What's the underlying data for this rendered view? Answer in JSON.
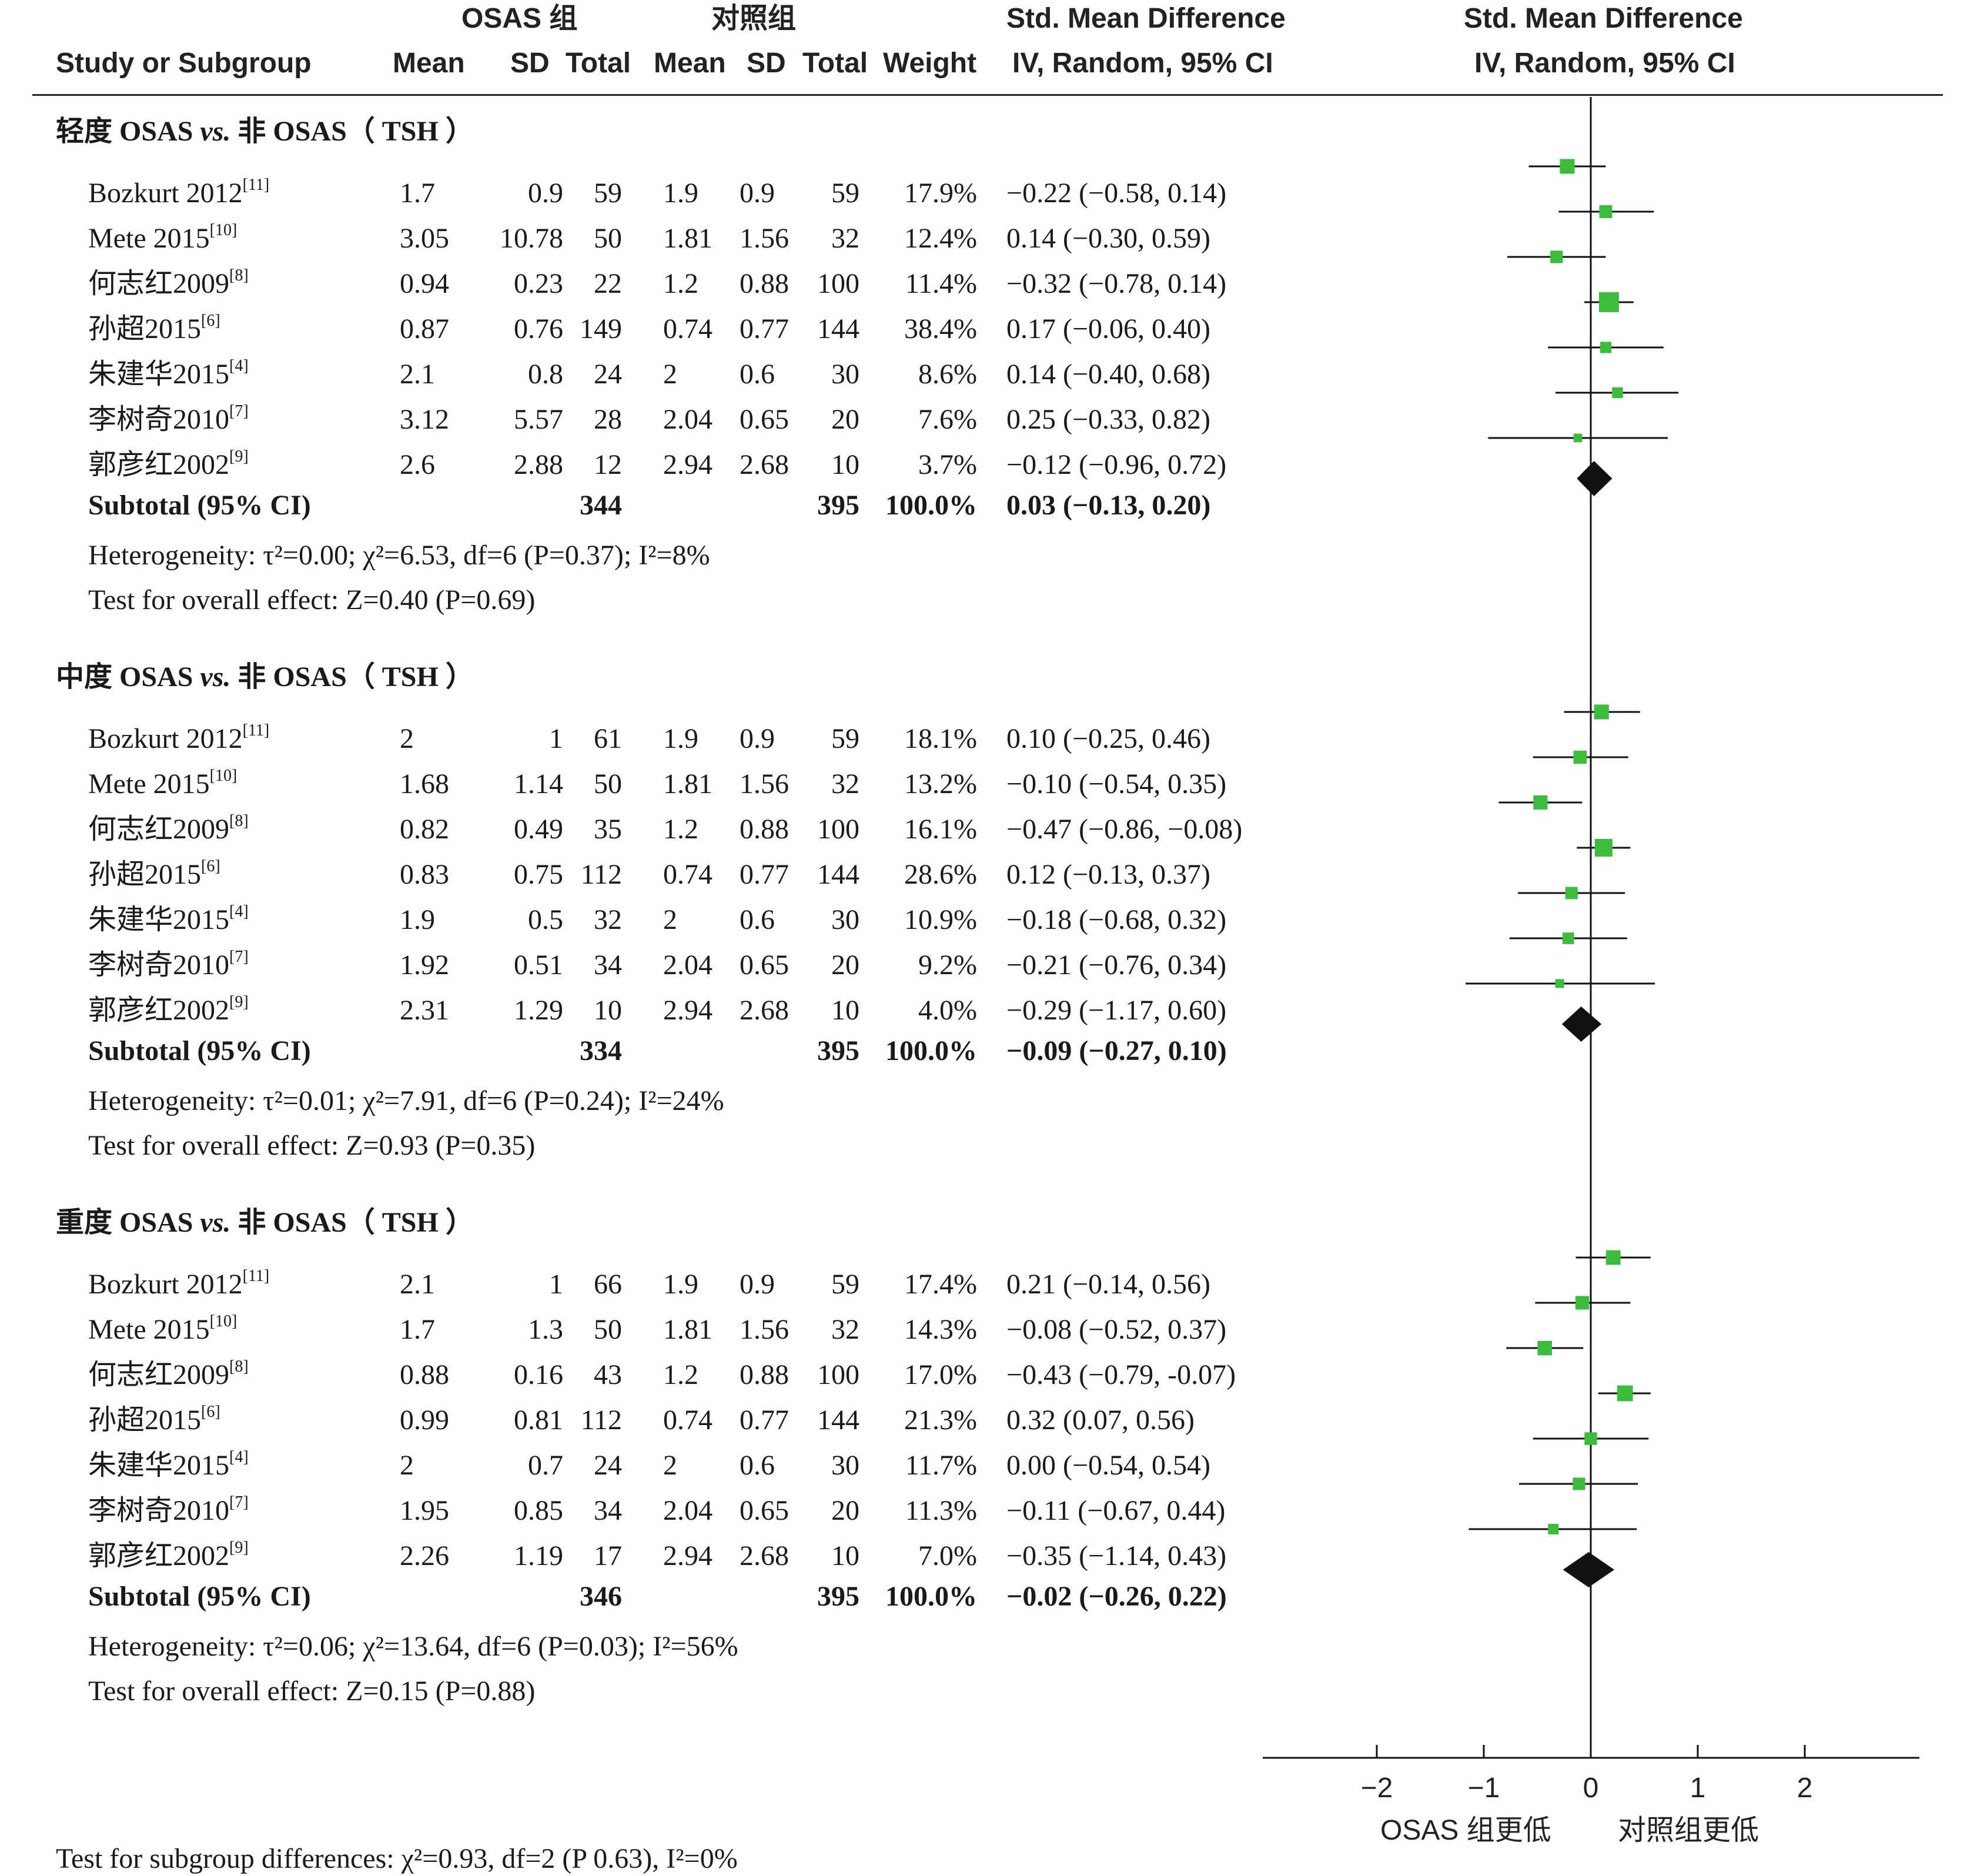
{
  "header": {
    "group1": "OSAS 组",
    "group2": "对照组",
    "smd_col_title": "Std. Mean Difference",
    "smd_col_sub": "IV, Random, 95% CI",
    "plot_title": "Std. Mean Difference",
    "plot_sub": "IV, Random, 95% CI",
    "study_col": "Study or Subgroup",
    "mean1": "Mean",
    "sd1": "SD",
    "total1": "Total",
    "mean2": "Mean",
    "sd2": "SD",
    "total2": "Total",
    "weight": "Weight"
  },
  "chart_data": {
    "type": "forest",
    "xlim": [
      -2,
      2
    ],
    "xticks": [
      "−2",
      "−1",
      "0",
      "1",
      "2"
    ],
    "xlabel_left": "OSAS 组更低",
    "xlabel_right": "对照组更低",
    "subgroups": [
      {
        "title_pre": "轻度 OSAS ",
        "title_vs": "vs.",
        "title_post": " 非 OSAS（ TSH ）",
        "studies": [
          {
            "name": "Bozkurt 2012",
            "ref": "[11]",
            "m1": "1.7",
            "sd1": "0.9",
            "n1": "59",
            "m2": "1.9",
            "sd2": "0.9",
            "n2": "59",
            "w": "17.9%",
            "ci_text": "−0.22 (−0.58, 0.14)",
            "est": -0.22,
            "lo": -0.58,
            "hi": 0.14,
            "wv": 17.9
          },
          {
            "name": "Mete 2015",
            "ref": "[10]",
            "m1": "3.05",
            "sd1": "10.78",
            "n1": "50",
            "m2": "1.81",
            "sd2": "1.56",
            "n2": "32",
            "w": "12.4%",
            "ci_text": "0.14 (−0.30, 0.59)",
            "est": 0.14,
            "lo": -0.3,
            "hi": 0.59,
            "wv": 12.4
          },
          {
            "name": "何志红2009",
            "ref": "[8]",
            "m1": "0.94",
            "sd1": "0.23",
            "n1": "22",
            "m2": "1.2",
            "sd2": "0.88",
            "n2": "100",
            "w": "11.4%",
            "ci_text": "−0.32 (−0.78, 0.14)",
            "est": -0.32,
            "lo": -0.78,
            "hi": 0.14,
            "wv": 11.4
          },
          {
            "name": "孙超2015",
            "ref": "[6]",
            "m1": "0.87",
            "sd1": "0.76",
            "n1": "149",
            "m2": "0.74",
            "sd2": "0.77",
            "n2": "144",
            "w": "38.4%",
            "ci_text": "0.17 (−0.06, 0.40)",
            "est": 0.17,
            "lo": -0.06,
            "hi": 0.4,
            "wv": 38.4
          },
          {
            "name": "朱建华2015",
            "ref": "[4]",
            "m1": "2.1",
            "sd1": "0.8",
            "n1": "24",
            "m2": "2",
            "sd2": "0.6",
            "n2": "30",
            "w": "8.6%",
            "ci_text": "0.14 (−0.40, 0.68)",
            "est": 0.14,
            "lo": -0.4,
            "hi": 0.68,
            "wv": 8.6
          },
          {
            "name": "李树奇2010",
            "ref": "[7]",
            "m1": "3.12",
            "sd1": "5.57",
            "n1": "28",
            "m2": "2.04",
            "sd2": "0.65",
            "n2": "20",
            "w": "7.6%",
            "ci_text": "0.25 (−0.33, 0.82)",
            "est": 0.25,
            "lo": -0.33,
            "hi": 0.82,
            "wv": 7.6
          },
          {
            "name": "郭彦红2002",
            "ref": "[9]",
            "m1": "2.6",
            "sd1": "2.88",
            "n1": "12",
            "m2": "2.94",
            "sd2": "2.68",
            "n2": "10",
            "w": "3.7%",
            "ci_text": "−0.12 (−0.96, 0.72)",
            "est": -0.12,
            "lo": -0.96,
            "hi": 0.72,
            "wv": 3.7
          }
        ],
        "subtotal": {
          "label": "Subtotal (95% CI)",
          "n1": "344",
          "n2": "395",
          "w": "100.0%",
          "ci_text": "0.03 (−0.13, 0.20)",
          "est": 0.03,
          "lo": -0.13,
          "hi": 0.2
        },
        "heterogeneity": "Heterogeneity: τ²=0.00; χ²=6.53, df=6 (P=0.37); I²=8%",
        "overall": "Test for overall effect: Z=0.40 (P=0.69)"
      },
      {
        "title_pre": "中度 OSAS ",
        "title_vs": "vs.",
        "title_post": " 非 OSAS（ TSH ）",
        "studies": [
          {
            "name": "Bozkurt 2012",
            "ref": "[11]",
            "m1": "2",
            "sd1": "1",
            "n1": "61",
            "m2": "1.9",
            "sd2": "0.9",
            "n2": "59",
            "w": "18.1%",
            "ci_text": "0.10 (−0.25, 0.46)",
            "est": 0.1,
            "lo": -0.25,
            "hi": 0.46,
            "wv": 18.1
          },
          {
            "name": "Mete 2015",
            "ref": "[10]",
            "m1": "1.68",
            "sd1": "1.14",
            "n1": "50",
            "m2": "1.81",
            "sd2": "1.56",
            "n2": "32",
            "w": "13.2%",
            "ci_text": "−0.10 (−0.54, 0.35)",
            "est": -0.1,
            "lo": -0.54,
            "hi": 0.35,
            "wv": 13.2
          },
          {
            "name": "何志红2009",
            "ref": "[8]",
            "m1": "0.82",
            "sd1": "0.49",
            "n1": "35",
            "m2": "1.2",
            "sd2": "0.88",
            "n2": "100",
            "w": "16.1%",
            "ci_text": "−0.47 (−0.86, −0.08)",
            "est": -0.47,
            "lo": -0.86,
            "hi": -0.08,
            "wv": 16.1
          },
          {
            "name": "孙超2015",
            "ref": "[6]",
            "m1": "0.83",
            "sd1": "0.75",
            "n1": "112",
            "m2": "0.74",
            "sd2": "0.77",
            "n2": "144",
            "w": "28.6%",
            "ci_text": "0.12 (−0.13, 0.37)",
            "est": 0.12,
            "lo": -0.13,
            "hi": 0.37,
            "wv": 28.6
          },
          {
            "name": "朱建华2015",
            "ref": "[4]",
            "m1": "1.9",
            "sd1": "0.5",
            "n1": "32",
            "m2": "2",
            "sd2": "0.6",
            "n2": "30",
            "w": "10.9%",
            "ci_text": "−0.18 (−0.68, 0.32)",
            "est": -0.18,
            "lo": -0.68,
            "hi": 0.32,
            "wv": 10.9
          },
          {
            "name": "李树奇2010",
            "ref": "[7]",
            "m1": "1.92",
            "sd1": "0.51",
            "n1": "34",
            "m2": "2.04",
            "sd2": "0.65",
            "n2": "20",
            "w": "9.2%",
            "ci_text": "−0.21 (−0.76, 0.34)",
            "est": -0.21,
            "lo": -0.76,
            "hi": 0.34,
            "wv": 9.2
          },
          {
            "name": "郭彦红2002",
            "ref": "[9]",
            "m1": "2.31",
            "sd1": "1.29",
            "n1": "10",
            "m2": "2.94",
            "sd2": "2.68",
            "n2": "10",
            "w": "4.0%",
            "ci_text": "−0.29 (−1.17, 0.60)",
            "est": -0.29,
            "lo": -1.17,
            "hi": 0.6,
            "wv": 4.0
          }
        ],
        "subtotal": {
          "label": "Subtotal (95% CI)",
          "n1": "334",
          "n2": "395",
          "w": "100.0%",
          "ci_text": "−0.09 (−0.27, 0.10)",
          "est": -0.09,
          "lo": -0.27,
          "hi": 0.1
        },
        "heterogeneity": "Heterogeneity: τ²=0.01; χ²=7.91, df=6 (P=0.24); I²=24%",
        "overall": "Test for overall effect: Z=0.93 (P=0.35)"
      },
      {
        "title_pre": "重度 OSAS ",
        "title_vs": "vs.",
        "title_post": " 非 OSAS（ TSH ）",
        "studies": [
          {
            "name": "Bozkurt 2012",
            "ref": "[11]",
            "m1": "2.1",
            "sd1": "1",
            "n1": "66",
            "m2": "1.9",
            "sd2": "0.9",
            "n2": "59",
            "w": "17.4%",
            "ci_text": "0.21 (−0.14, 0.56)",
            "est": 0.21,
            "lo": -0.14,
            "hi": 0.56,
            "wv": 17.4
          },
          {
            "name": "Mete 2015",
            "ref": "[10]",
            "m1": "1.7",
            "sd1": "1.3",
            "n1": "50",
            "m2": "1.81",
            "sd2": "1.56",
            "n2": "32",
            "w": "14.3%",
            "ci_text": "−0.08 (−0.52, 0.37)",
            "est": -0.08,
            "lo": -0.52,
            "hi": 0.37,
            "wv": 14.3
          },
          {
            "name": "何志红2009",
            "ref": "[8]",
            "m1": "0.88",
            "sd1": "0.16",
            "n1": "43",
            "m2": "1.2",
            "sd2": "0.88",
            "n2": "100",
            "w": "17.0%",
            "ci_text": "−0.43 (−0.79, -0.07)",
            "est": -0.43,
            "lo": -0.79,
            "hi": -0.07,
            "wv": 17.0
          },
          {
            "name": "孙超2015",
            "ref": "[6]",
            "m1": "0.99",
            "sd1": "0.81",
            "n1": "112",
            "m2": "0.74",
            "sd2": "0.77",
            "n2": "144",
            "w": "21.3%",
            "ci_text": "0.32 (0.07, 0.56)",
            "est": 0.32,
            "lo": 0.07,
            "hi": 0.56,
            "wv": 21.3
          },
          {
            "name": "朱建华2015",
            "ref": "[4]",
            "m1": "2",
            "sd1": "0.7",
            "n1": "24",
            "m2": "2",
            "sd2": "0.6",
            "n2": "30",
            "w": "11.7%",
            "ci_text": "0.00 (−0.54, 0.54)",
            "est": 0.0,
            "lo": -0.54,
            "hi": 0.54,
            "wv": 11.7
          },
          {
            "name": "李树奇2010",
            "ref": "[7]",
            "m1": "1.95",
            "sd1": "0.85",
            "n1": "34",
            "m2": "2.04",
            "sd2": "0.65",
            "n2": "20",
            "w": "11.3%",
            "ci_text": "−0.11 (−0.67, 0.44)",
            "est": -0.11,
            "lo": -0.67,
            "hi": 0.44,
            "wv": 11.3
          },
          {
            "name": "郭彦红2002",
            "ref": "[9]",
            "m1": "2.26",
            "sd1": "1.19",
            "n1": "17",
            "m2": "2.94",
            "sd2": "2.68",
            "n2": "10",
            "w": "7.0%",
            "ci_text": "−0.35 (−1.14, 0.43)",
            "est": -0.35,
            "lo": -1.14,
            "hi": 0.43,
            "wv": 7.0
          }
        ],
        "subtotal": {
          "label": "Subtotal (95% CI)",
          "n1": "346",
          "n2": "395",
          "w": "100.0%",
          "ci_text": "−0.02 (−0.26, 0.22)",
          "est": -0.02,
          "lo": -0.26,
          "hi": 0.22
        },
        "heterogeneity": "Heterogeneity: τ²=0.06; χ²=13.64, df=6 (P=0.03); I²=56%",
        "overall": "Test for overall effect: Z=0.15 (P=0.88)"
      }
    ],
    "subgroup_diff": "Test for subgroup differences: χ²=0.93, df=2 (P 0.63), I²=0%",
    "colors": {
      "square": "#3dbb3d",
      "diamond": "#111111",
      "line": "#111111"
    }
  }
}
